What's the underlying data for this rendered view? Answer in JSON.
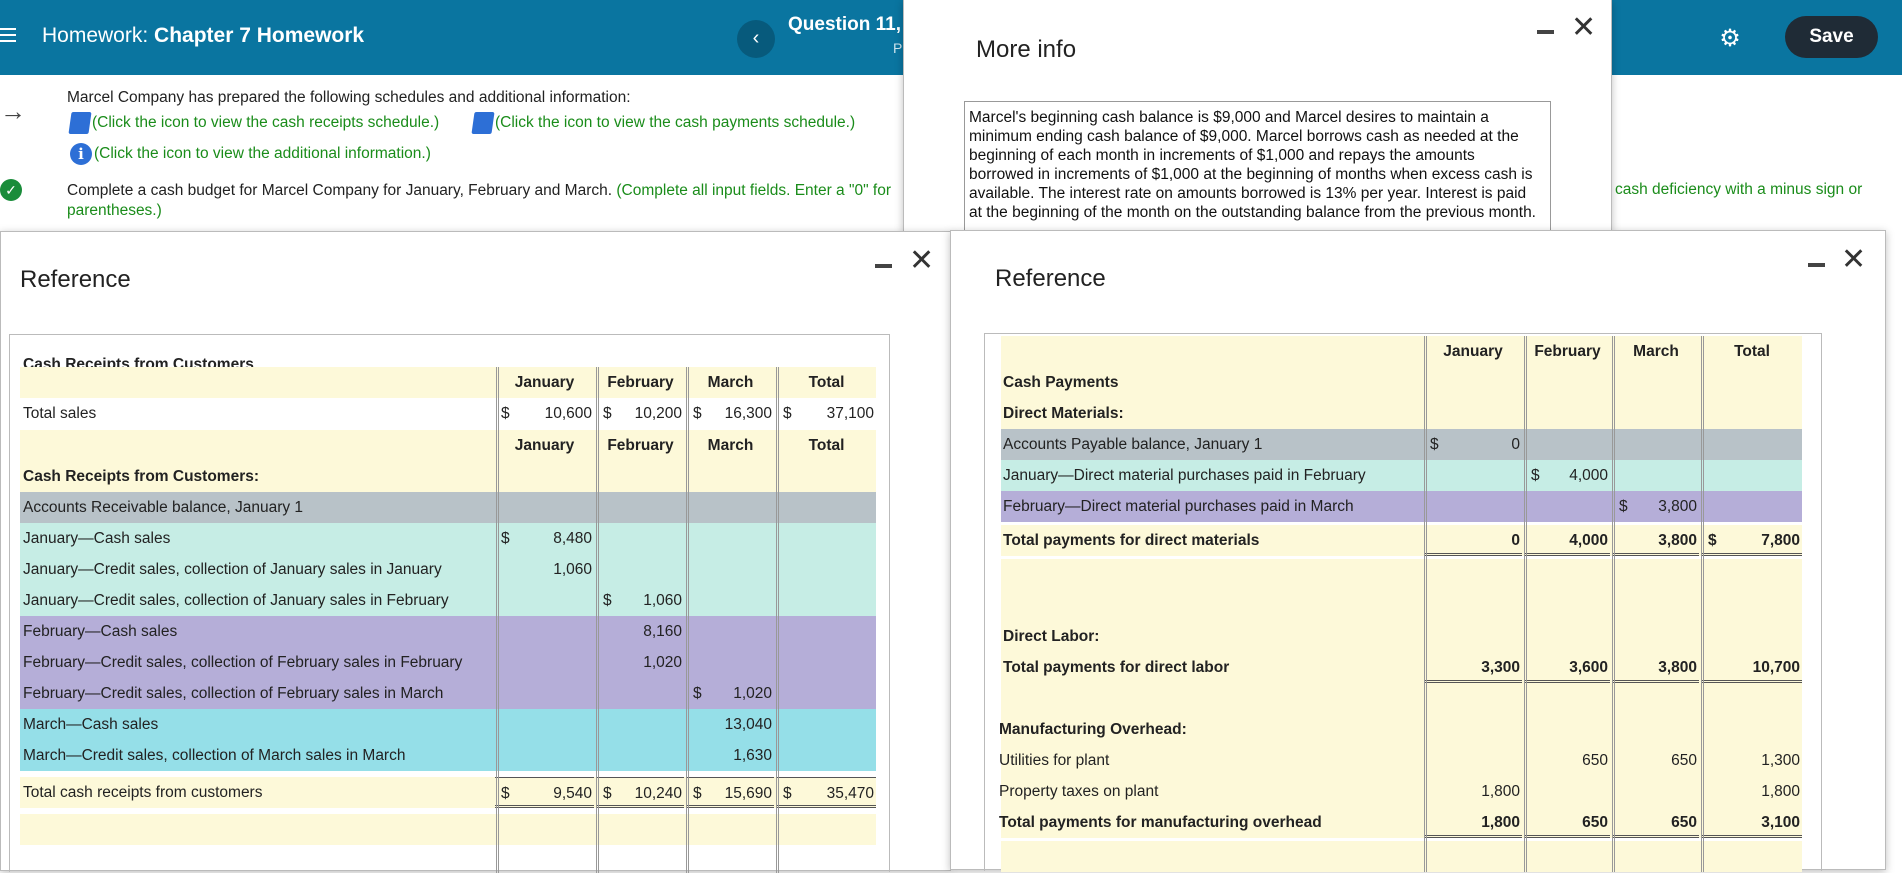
{
  "header": {
    "title_prefix": "Homework:",
    "title_name": "Chapter 7 Homework",
    "question_label": "Question 11,",
    "question_sub": "P",
    "save_label": "Save"
  },
  "question": {
    "intro": "Marcel Company has prepared the following schedules and additional information:",
    "link_receipts": "(Click the icon to view the cash receipts schedule.)",
    "link_payments": "(Click the icon to view the cash payments schedule.)",
    "link_info": "(Click the icon to view the additional information.)",
    "complete_main": "Complete a cash budget for Marcel Company for January, February and March.",
    "complete_hint": "(Complete all input fields. Enter a \"0\" for",
    "complete_hint_end": "parentheses.)",
    "complete_hint_right": "cash deficiency with a minus sign or"
  },
  "more_info": {
    "title": "More info",
    "lines": [
      "Marcel's beginning cash balance is $9,000 and Marcel desires to maintain a",
      "minimum ending cash balance of $9,000. Marcel borrows cash as needed at the",
      "beginning of each month in increments of $1,000 and repays the amounts",
      "borrowed in increments of $1,000 at the beginning of months when excess cash is",
      "available. The interest rate on amounts borrowed is 13% per year. Interest is paid",
      "at the beginning of the month on the outstanding balance from the previous month."
    ]
  },
  "ref1": {
    "title": "Reference",
    "table_title": "Cash Receipts from Customers",
    "months": [
      "January",
      "February",
      "March",
      "Total"
    ],
    "total_sales_label": "Total sales",
    "total_sales": [
      "10,600",
      "10,200",
      "16,300",
      "37,100"
    ],
    "section_label": "Cash Receipts from Customers:",
    "rows": [
      {
        "label": "Accounts Receivable balance, January 1",
        "color": "gray",
        "vals": [
          "",
          "",
          "",
          ""
        ]
      },
      {
        "label": "January—Cash sales",
        "color": "mint",
        "vals": [
          "8,480",
          "",
          "",
          ""
        ],
        "dol": [
          true,
          false,
          false,
          false
        ]
      },
      {
        "label": "January—Credit sales, collection of January sales in January",
        "color": "mint",
        "vals": [
          "1,060",
          "",
          "",
          ""
        ]
      },
      {
        "label": "January—Credit sales, collection of January sales in February",
        "color": "mint",
        "vals": [
          "",
          "1,060",
          "",
          ""
        ],
        "dol": [
          false,
          true,
          false,
          false
        ]
      },
      {
        "label": "February—Cash sales",
        "color": "purple",
        "vals": [
          "",
          "8,160",
          "",
          ""
        ]
      },
      {
        "label": "February—Credit sales, collection of February sales in February",
        "color": "purple",
        "vals": [
          "",
          "1,020",
          "",
          ""
        ]
      },
      {
        "label": "February—Credit sales, collection of February sales in March",
        "color": "purple",
        "vals": [
          "",
          "",
          "1,020",
          ""
        ],
        "dol": [
          false,
          false,
          true,
          false
        ]
      },
      {
        "label": "March—Cash sales",
        "color": "cyan",
        "vals": [
          "",
          "",
          "13,040",
          ""
        ]
      },
      {
        "label": "March—Credit sales, collection of March sales in March",
        "color": "cyan",
        "vals": [
          "",
          "",
          "1,630",
          ""
        ]
      }
    ],
    "total_label": "Total cash receipts from customers",
    "totals": [
      "9,540",
      "10,240",
      "15,690",
      "35,470"
    ]
  },
  "ref2": {
    "title": "Reference",
    "months": [
      "January",
      "February",
      "March",
      "Total"
    ],
    "cash_payments_label": "Cash Payments",
    "dm_label": "Direct Materials:",
    "dm_rows": [
      {
        "label": "Accounts Payable balance, January 1",
        "color": "gray",
        "vals": [
          "0",
          "",
          "",
          ""
        ],
        "dol": [
          true,
          false,
          false,
          false
        ]
      },
      {
        "label": "January—Direct material purchases paid in February",
        "color": "mint",
        "vals": [
          "",
          "4,000",
          "",
          ""
        ],
        "dol": [
          false,
          true,
          false,
          false
        ]
      },
      {
        "label": "February—Direct material purchases paid in March",
        "color": "purple",
        "vals": [
          "",
          "",
          "3,800",
          ""
        ],
        "dol": [
          false,
          false,
          true,
          false
        ]
      }
    ],
    "dm_total_label": "Total payments for direct materials",
    "dm_totals": [
      "0",
      "4,000",
      "3,800",
      "7,800"
    ],
    "dl_label": "Direct Labor:",
    "dl_total_label": "Total payments for direct labor",
    "dl_totals": [
      "3,300",
      "3,600",
      "3,800",
      "10,700"
    ],
    "mo_label": "Manufacturing Overhead:",
    "mo_rows": [
      {
        "label": "Utilities for plant",
        "vals": [
          "",
          "650",
          "650",
          "1,300"
        ]
      },
      {
        "label": "Property taxes on plant",
        "vals": [
          "1,800",
          "",
          "",
          "1,800"
        ]
      }
    ],
    "mo_total_label": "Total payments for manufacturing overhead",
    "mo_totals": [
      "1,800",
      "650",
      "650",
      "3,100"
    ]
  }
}
